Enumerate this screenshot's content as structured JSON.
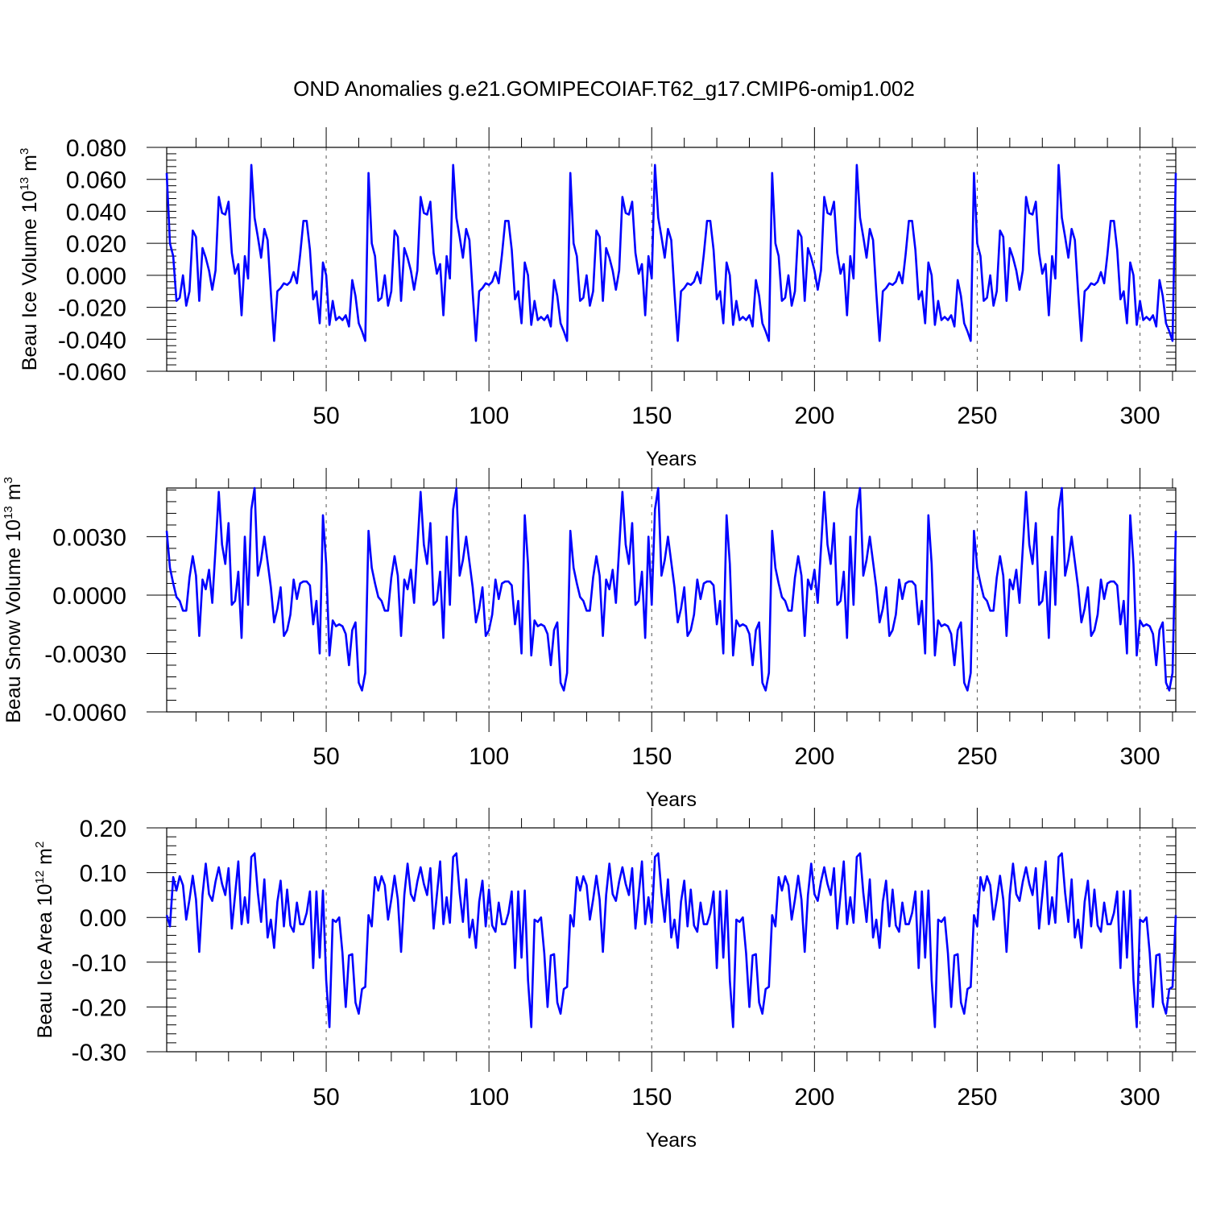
{
  "title": "OND Anomalies g.e21.GOMIPECOIAF.T62_g17.CMIP6-omip1.002",
  "colors": {
    "series": "#0000ff",
    "axes": "#000000",
    "grid": "#555555",
    "background": "#ffffff"
  },
  "chart_data": [
    {
      "type": "line",
      "title": "OND Anomalies g.e21.GOMIPECOIAF.T62_g17.CMIP6-omip1.002",
      "xlabel": "Years",
      "ylabel": {
        "main": "Beau Ice Volume 10",
        "exp": "13",
        "unit": " m",
        "unit_exp": "3"
      },
      "xlim": [
        1,
        311
      ],
      "ylim": [
        -0.06,
        0.08
      ],
      "xticks": [
        50,
        100,
        150,
        200,
        250,
        300
      ],
      "xtick_labels": [
        "50",
        "100",
        "150",
        "200",
        "250",
        "300"
      ],
      "yticks": [
        -0.06,
        -0.04,
        -0.02,
        0.0,
        0.02,
        0.04,
        0.06,
        0.08
      ],
      "ytick_labels": [
        "-0.060",
        "-0.040",
        "-0.020",
        "0.000",
        "0.020",
        "0.040",
        "0.060",
        "0.080"
      ],
      "grid": "dashed vertical at x ticks",
      "period": 62,
      "x_start": 1,
      "base_values": [
        0.064,
        0.02,
        0.012,
        -0.016,
        -0.014,
        0.0,
        -0.019,
        -0.01,
        0.028,
        0.024,
        -0.016,
        0.017,
        0.011,
        0.003,
        -0.009,
        0.003,
        0.049,
        0.039,
        0.038,
        0.046,
        0.014,
        0.001,
        0.007,
        -0.025,
        0.012,
        -0.002,
        0.069,
        0.036,
        0.024,
        0.011,
        0.029,
        0.022,
        -0.011,
        -0.041,
        -0.01,
        -0.008,
        -0.005,
        -0.006,
        -0.004,
        0.002,
        -0.005,
        0.013,
        0.034,
        0.034,
        0.016,
        -0.015,
        -0.01,
        -0.03,
        0.008,
        0.0,
        -0.031,
        -0.016,
        -0.028,
        -0.026,
        -0.028,
        -0.025,
        -0.032,
        -0.003,
        -0.013,
        -0.03,
        -0.035,
        -0.041
      ],
      "series": [
        {
          "name": "Beau Ice Volume",
          "color": "#0000ff"
        }
      ]
    },
    {
      "type": "line",
      "xlabel": "Years",
      "ylabel": {
        "main": "Beau Snow Volume 10",
        "exp": "13",
        "unit": " m",
        "unit_exp": "3"
      },
      "xlim": [
        1,
        311
      ],
      "ylim": [
        -0.006,
        0.0055
      ],
      "xticks": [
        50,
        100,
        150,
        200,
        250,
        300
      ],
      "xtick_labels": [
        "50",
        "100",
        "150",
        "200",
        "250",
        "300"
      ],
      "yticks": [
        -0.006,
        -0.003,
        0.0,
        0.003
      ],
      "ytick_labels": [
        "-0.0060",
        "-0.0030",
        "0.0000",
        "0.0030"
      ],
      "grid": "dashed vertical at x ticks",
      "period": 62,
      "x_start": 1,
      "base_values": [
        0.0033,
        0.0014,
        0.0006,
        -0.0001,
        -0.0003,
        -0.0008,
        -0.0008,
        0.0009,
        0.002,
        0.001,
        -0.0021,
        0.0008,
        0.0003,
        0.0013,
        -0.0004,
        0.0024,
        0.0053,
        0.0026,
        0.0016,
        0.0037,
        -0.0005,
        -0.0003,
        0.0012,
        -0.0022,
        0.003,
        -0.0005,
        0.0044,
        0.0055,
        0.001,
        0.0018,
        0.003,
        0.0017,
        0.0004,
        -0.0014,
        -0.0007,
        0.0004,
        -0.0021,
        -0.0018,
        -0.001,
        0.0008,
        -0.0002,
        0.0006,
        0.0007,
        0.0007,
        0.0005,
        -0.0015,
        -0.0003,
        -0.003,
        0.0041,
        0.0016,
        -0.0031,
        -0.0013,
        -0.0016,
        -0.0015,
        -0.0016,
        -0.002,
        -0.0036,
        -0.0018,
        -0.0014,
        -0.0045,
        -0.0049,
        -0.004
      ],
      "series": [
        {
          "name": "Beau Snow Volume",
          "color": "#0000ff"
        }
      ]
    },
    {
      "type": "line",
      "xlabel": "Years",
      "ylabel": {
        "main": "Beau Ice Area 10",
        "exp": "12",
        "unit": " m",
        "unit_exp": "2"
      },
      "xlim": [
        1,
        311
      ],
      "ylim": [
        -0.3,
        0.2
      ],
      "xticks": [
        50,
        100,
        150,
        200,
        250,
        300
      ],
      "xtick_labels": [
        "50",
        "100",
        "150",
        "200",
        "250",
        "300"
      ],
      "yticks": [
        -0.3,
        -0.2,
        -0.1,
        0.0,
        0.1,
        0.2
      ],
      "ytick_labels": [
        "-0.30",
        "-0.20",
        "-0.10",
        "0.00",
        "0.10",
        "0.20"
      ],
      "grid": "dashed vertical at x ticks",
      "period": 62,
      "x_start": 1,
      "base_values": [
        0.005,
        -0.02,
        0.09,
        0.06,
        0.092,
        0.072,
        -0.005,
        0.04,
        0.093,
        0.04,
        -0.077,
        0.05,
        0.12,
        0.052,
        0.037,
        0.08,
        0.112,
        0.075,
        0.05,
        0.11,
        -0.025,
        0.05,
        0.125,
        -0.015,
        0.045,
        -0.012,
        0.135,
        0.143,
        0.055,
        -0.01,
        0.085,
        -0.045,
        -0.005,
        -0.068,
        0.035,
        0.082,
        -0.02,
        0.062,
        -0.018,
        -0.032,
        0.033,
        -0.015,
        -0.015,
        0.01,
        0.058,
        -0.113,
        0.058,
        -0.09,
        0.06,
        -0.14,
        -0.245,
        -0.005,
        -0.01,
        0.0,
        -0.08,
        -0.2,
        -0.085,
        -0.082,
        -0.19,
        -0.215,
        -0.16,
        -0.155
      ],
      "series": [
        {
          "name": "Beau Ice Area",
          "color": "#0000ff"
        }
      ]
    }
  ]
}
